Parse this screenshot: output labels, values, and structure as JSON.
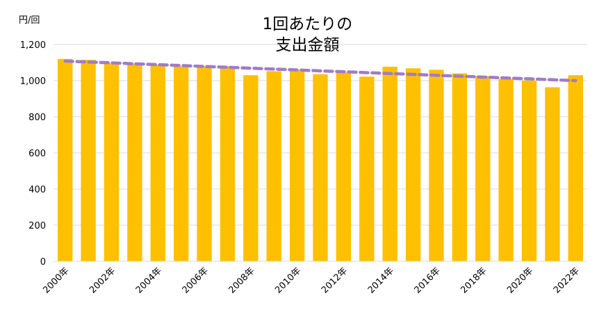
{
  "chart_data": {
    "type": "bar",
    "title": [
      "1回あたりの",
      "支出金額"
    ],
    "ylabel": "円/回",
    "ylim": [
      0,
      1200
    ],
    "yticks": [
      0,
      200,
      400,
      600,
      800,
      1000,
      1200
    ],
    "ytick_labels": [
      "0",
      "200",
      "400",
      "600",
      "800",
      "1,000",
      "1,200"
    ],
    "categories": [
      "2000年",
      "2001年",
      "2002年",
      "2003年",
      "2004年",
      "2005年",
      "2006年",
      "2007年",
      "2008年",
      "2009年",
      "2010年",
      "2011年",
      "2012年",
      "2013年",
      "2014年",
      "2015年",
      "2016年",
      "2017年",
      "2018年",
      "2019年",
      "2020年",
      "2021年",
      "2022年"
    ],
    "xtick_labels": [
      "2000年",
      "",
      "2002年",
      "",
      "2004年",
      "",
      "2006年",
      "",
      "2008年",
      "",
      "2010年",
      "",
      "2012年",
      "",
      "2014年",
      "",
      "2016年",
      "",
      "2018年",
      "",
      "2020年",
      "",
      "2022年"
    ],
    "series": [
      {
        "type": "bar",
        "color": "#FFC000",
        "values": [
          1120,
          1115,
          1095,
          1095,
          1088,
          1078,
          1080,
          1080,
          1030,
          1052,
          1058,
          1035,
          1045,
          1022,
          1077,
          1068,
          1060,
          1040,
          1025,
          1010,
          1000,
          963,
          1030
        ]
      },
      {
        "type": "line",
        "style": "dashed",
        "trendline": "linear",
        "color": "#A07CC5",
        "start": 1108,
        "end": 1000
      }
    ],
    "grid": true,
    "legend": "none"
  }
}
